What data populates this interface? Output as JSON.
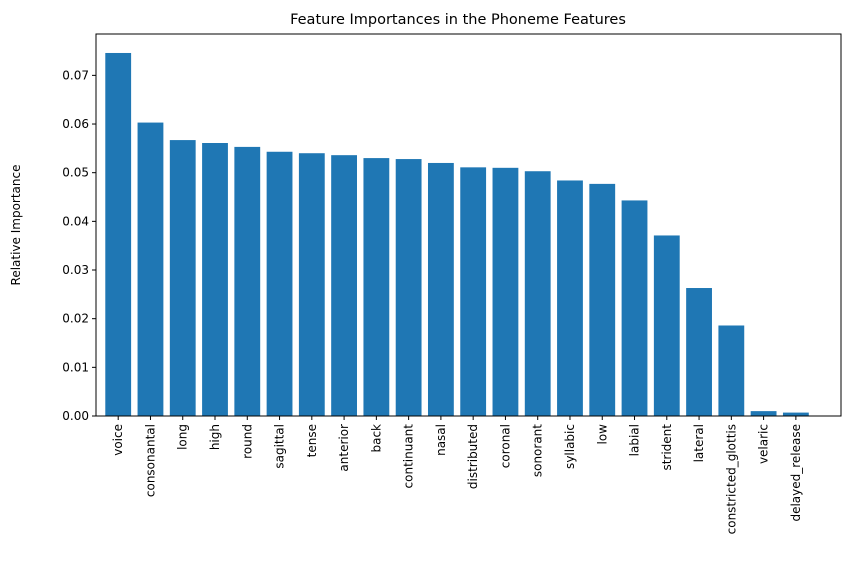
{
  "chart_data": {
    "type": "bar",
    "title": "Feature Importances in the Phoneme Features",
    "xlabel": "",
    "ylabel": "Relative Importance",
    "ylim": [
      0,
      0.0785
    ],
    "yticks": [
      "0.00",
      "0.01",
      "0.02",
      "0.03",
      "0.04",
      "0.05",
      "0.06",
      "0.07"
    ],
    "grid": false,
    "bar_color": "#1f77b4",
    "categories": [
      "voice",
      "consonantal",
      "long",
      "high",
      "round",
      "sagittal",
      "tense",
      "anterior",
      "back",
      "continuant",
      "nasal",
      "distributed",
      "coronal",
      "sonorant",
      "syllabic",
      "low",
      "labial",
      "strident",
      "lateral",
      "constricted_glottis",
      "velaric",
      "delayed_release"
    ],
    "values": [
      0.0746,
      0.0603,
      0.0567,
      0.0561,
      0.0553,
      0.0543,
      0.054,
      0.0536,
      0.053,
      0.0528,
      0.052,
      0.0511,
      0.051,
      0.0503,
      0.0484,
      0.0477,
      0.0443,
      0.0371,
      0.0263,
      0.0186,
      0.001,
      0.0007
    ]
  }
}
